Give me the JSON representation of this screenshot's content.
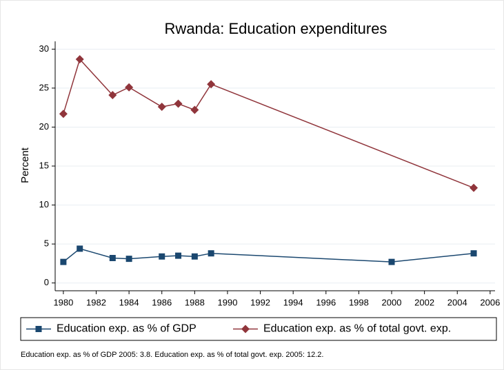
{
  "chart_data": {
    "type": "line",
    "title": "Rwanda: Education expenditures",
    "y_label": "Percent",
    "note": "Education exp. as % of GDP 2005: 3.8. Education exp. as % of total govt. exp. 2005: 12.2.",
    "xlim": [
      1979.5,
      2006.3
    ],
    "xticks": [
      1980,
      1982,
      1984,
      1986,
      1988,
      1990,
      1992,
      1994,
      1996,
      1998,
      2000,
      2002,
      2004,
      2006
    ],
    "ylim": [
      -1,
      31
    ],
    "yticks": [
      0,
      5,
      10,
      15,
      20,
      25,
      30
    ],
    "grid": true,
    "legend": "bottom",
    "series": [
      {
        "name": "Education exp. as % of GDP",
        "color": "#1a476f",
        "marker": "square",
        "x": [
          1980,
          1981,
          1983,
          1984,
          1986,
          1987,
          1988,
          1989,
          2000,
          2005
        ],
        "values": [
          2.7,
          4.4,
          3.2,
          3.1,
          3.4,
          3.5,
          3.4,
          3.8,
          2.7,
          3.8
        ]
      },
      {
        "name": "Education exp. as % of total govt. exp.",
        "color": "#90353b",
        "marker": "diamond",
        "x": [
          1980,
          1981,
          1983,
          1984,
          1986,
          1987,
          1988,
          1989,
          2005
        ],
        "values": [
          21.7,
          28.7,
          24.1,
          25.1,
          22.6,
          23.0,
          22.2,
          25.5,
          12.2
        ]
      }
    ]
  }
}
